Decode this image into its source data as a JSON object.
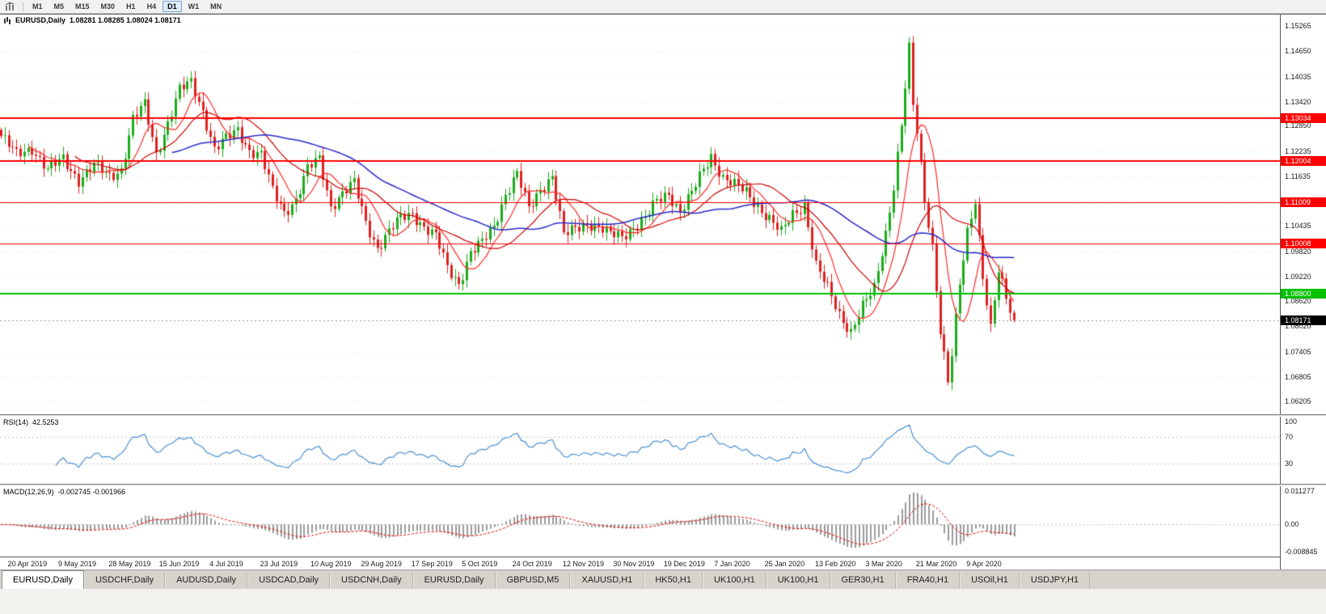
{
  "toolbar": {
    "timeframes": [
      "M1",
      "M5",
      "M15",
      "M30",
      "H1",
      "H4",
      "D1",
      "W1",
      "MN"
    ],
    "active_timeframe": "D1"
  },
  "chart_data": {
    "type": "candlestick",
    "symbol_period": "EURUSD,Daily",
    "ohlc_text": "1.08281 1.08285 1.08024 1.08171",
    "open": 1.08281,
    "high": 1.08285,
    "low": 1.08024,
    "close": 1.08171,
    "price_min": 1.059,
    "price_max": 1.1553,
    "y_ticks": [
      "1.15265",
      "1.14650",
      "1.14035",
      "1.13420",
      "1.12850",
      "1.12235",
      "1.11635",
      "1.11035",
      "1.10435",
      "1.09820",
      "1.09220",
      "1.08620",
      "1.08020",
      "1.07405",
      "1.06805",
      "1.06205"
    ],
    "x_labels": [
      "20 Apr 2019",
      "9 May 2019",
      "28 May 2019",
      "15 Jun 2019",
      "4 Jul 2019",
      "23 Jul 2019",
      "10 Aug 2019",
      "29 Aug 2019",
      "17 Sep 2019",
      "5 Oct 2019",
      "24 Oct 2019",
      "12 Nov 2019",
      "30 Nov 2019",
      "19 Dec 2019",
      "7 Jan 2020",
      "25 Jan 2020",
      "13 Feb 2020",
      "3 Mar 2020",
      "21 Mar 2020",
      "9 Apr 2020"
    ],
    "hlines": [
      {
        "price": 1.13034,
        "label": "1.13034",
        "color": "#ff0000",
        "width": 2
      },
      {
        "price": 1.12004,
        "label": "1.12004",
        "color": "#ff0000",
        "width": 2
      },
      {
        "price": 1.11009,
        "label": "1.11009",
        "color": "#ff0000",
        "width": 1
      },
      {
        "price": 1.10008,
        "label": "1.10008",
        "color": "#ff0000",
        "width": 1
      },
      {
        "price": 1.088,
        "label": "1.08800",
        "color": "#00c000",
        "width": 2
      }
    ],
    "current_price": {
      "value": 1.08171,
      "label": "1.08171"
    },
    "candle_count": 262,
    "close_keypoints": [
      [
        0,
        1.126
      ],
      [
        4,
        1.1215
      ],
      [
        8,
        1.1232
      ],
      [
        12,
        1.1178
      ],
      [
        16,
        1.1205
      ],
      [
        20,
        1.1155
      ],
      [
        24,
        1.1188
      ],
      [
        28,
        1.1165
      ],
      [
        31,
        1.118
      ],
      [
        34,
        1.13
      ],
      [
        37,
        1.1335
      ],
      [
        40,
        1.1218
      ],
      [
        43,
        1.1292
      ],
      [
        46,
        1.137
      ],
      [
        49,
        1.139
      ],
      [
        52,
        1.1322
      ],
      [
        55,
        1.1228
      ],
      [
        58,
        1.1252
      ],
      [
        61,
        1.1276
      ],
      [
        64,
        1.1226
      ],
      [
        67,
        1.1214
      ],
      [
        70,
        1.1128
      ],
      [
        73,
        1.1078
      ],
      [
        76,
        1.1108
      ],
      [
        79,
        1.118
      ],
      [
        82,
        1.1205
      ],
      [
        85,
        1.1092
      ],
      [
        88,
        1.1122
      ],
      [
        91,
        1.1146
      ],
      [
        94,
        1.1052
      ],
      [
        97,
        1.0992
      ],
      [
        100,
        1.103
      ],
      [
        103,
        1.1062
      ],
      [
        106,
        1.1074
      ],
      [
        109,
        1.1042
      ],
      [
        112,
        1.1018
      ],
      [
        115,
        1.0942
      ],
      [
        118,
        1.0906
      ],
      [
        121,
        1.098
      ],
      [
        124,
        1.1002
      ],
      [
        127,
        1.1042
      ],
      [
        130,
        1.1122
      ],
      [
        133,
        1.117
      ],
      [
        136,
        1.1082
      ],
      [
        139,
        1.1132
      ],
      [
        142,
        1.1166
      ],
      [
        145,
        1.102
      ],
      [
        148,
        1.1036
      ],
      [
        151,
        1.1052
      ],
      [
        154,
        1.1042
      ],
      [
        157,
        1.1022
      ],
      [
        160,
        1.1018
      ],
      [
        163,
        1.1042
      ],
      [
        166,
        1.1062
      ],
      [
        169,
        1.1102
      ],
      [
        172,
        1.1122
      ],
      [
        175,
        1.108
      ],
      [
        178,
        1.1122
      ],
      [
        181,
        1.1178
      ],
      [
        183,
        1.1212
      ],
      [
        186,
        1.1162
      ],
      [
        189,
        1.1142
      ],
      [
        192,
        1.1124
      ],
      [
        195,
        1.1092
      ],
      [
        198,
        1.1062
      ],
      [
        201,
        1.1026
      ],
      [
        204,
        1.1072
      ],
      [
        207,
        1.1096
      ],
      [
        210,
        1.0948
      ],
      [
        213,
        1.0892
      ],
      [
        216,
        1.0832
      ],
      [
        219,
        1.079
      ],
      [
        222,
        1.0848
      ],
      [
        225,
        1.0892
      ],
      [
        228,
        1.1028
      ],
      [
        230,
        1.1142
      ],
      [
        232,
        1.1286
      ],
      [
        234,
        1.1468
      ],
      [
        235,
        1.1332
      ],
      [
        236,
        1.127
      ],
      [
        238,
        1.1108
      ],
      [
        240,
        1.0998
      ],
      [
        242,
        1.0792
      ],
      [
        244,
        1.0665
      ],
      [
        245,
        1.073
      ],
      [
        247,
        1.0902
      ],
      [
        249,
        1.1032
      ],
      [
        251,
        1.111
      ],
      [
        253,
        1.0922
      ],
      [
        255,
        1.0792
      ],
      [
        257,
        1.0932
      ],
      [
        259,
        1.0872
      ],
      [
        261,
        1.08171
      ]
    ],
    "moving_averages": [
      {
        "period": 8,
        "color": "#ff2a2a"
      },
      {
        "period": 20,
        "color": "#cc0000"
      },
      {
        "period": 45,
        "color": "#2a2ac8"
      }
    ],
    "colors": {
      "up": "#1cac1c",
      "down": "#e02020",
      "grid": "#e6e6e6",
      "current_line": "#999999"
    }
  },
  "rsi": {
    "name": "RSI(14)",
    "value": "42.5253",
    "period": 14,
    "color": "#4a90d2",
    "levels": [
      70,
      30
    ],
    "ticks": [
      {
        "label": "100",
        "value": 100
      },
      {
        "label": "70",
        "value": 70
      },
      {
        "label": "30",
        "value": 30
      }
    ]
  },
  "macd": {
    "name": "MACD(12,26,9)",
    "values": "-0.002745 -0.001966",
    "fast": 12,
    "slow": 26,
    "signal": 9,
    "hist_color": "#9b9b9b",
    "signal_color": "#e00000",
    "scale_min": -0.0105,
    "scale_max": 0.0125,
    "ticks": [
      {
        "label": "0.011277",
        "value": 0.011277
      },
      {
        "label": "0.00",
        "value": 0
      },
      {
        "label": "-0.008845",
        "value": -0.008845
      }
    ]
  },
  "tabs": {
    "active_index": 0,
    "items": [
      "EURUSD,Daily",
      "USDCHF,Daily",
      "AUDUSD,Daily",
      "USDCAD,Daily",
      "USDCNH,Daily",
      "EURUSD,Daily",
      "GBPUSD,M5",
      "XAUUSD,H1",
      "HK50,H1",
      "UK100,H1",
      "UK100,H1",
      "GER30,H1",
      "FRA40,H1",
      "USOil,H1",
      "USDJPY,H1"
    ]
  }
}
